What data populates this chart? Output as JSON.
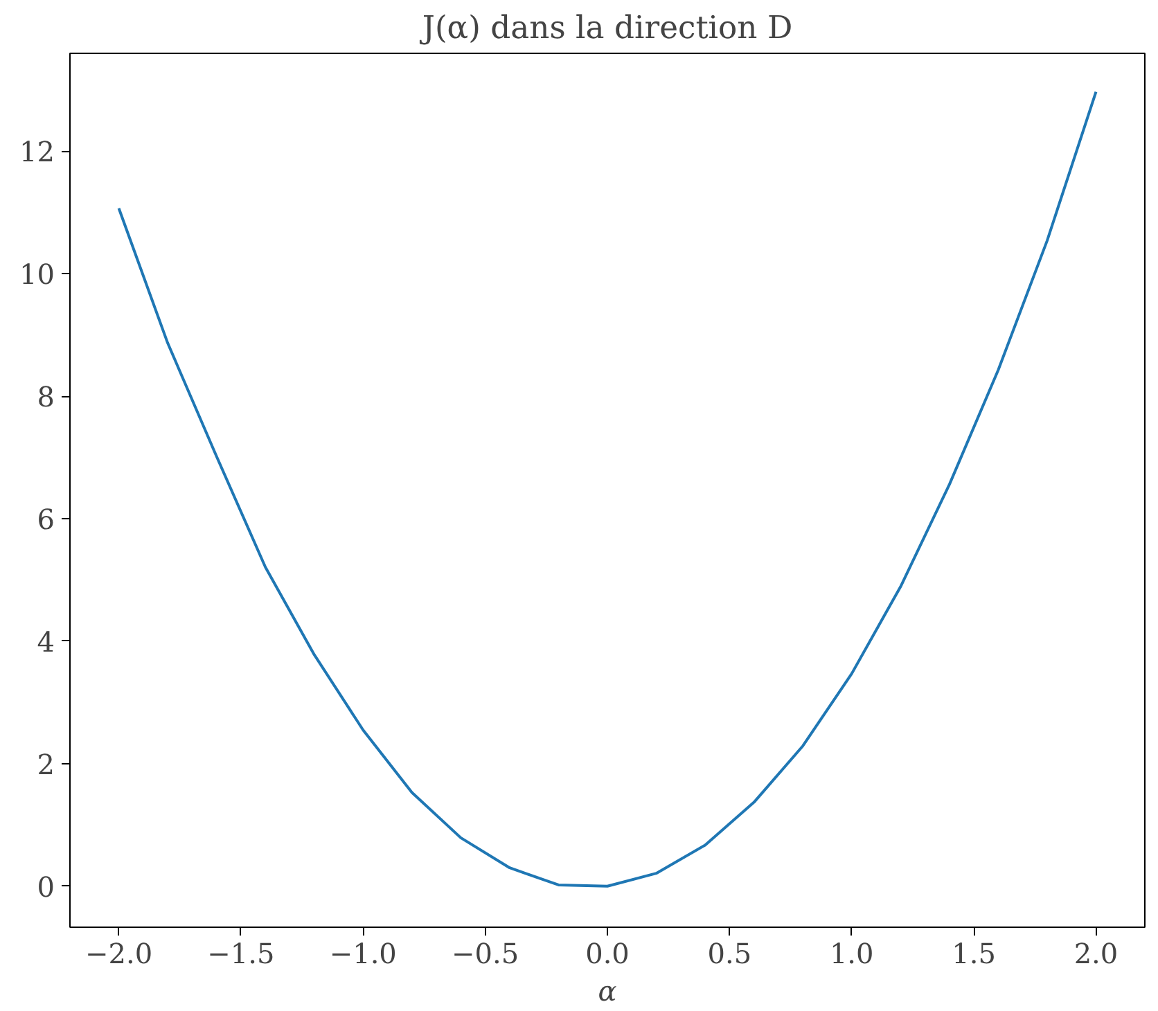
{
  "chart_data": {
    "type": "line",
    "title": "J(α) dans la direction D",
    "xlabel": "α",
    "x": [
      -2.0,
      -1.8,
      -1.6,
      -1.4,
      -1.2,
      -1.0,
      -0.8,
      -0.6,
      -0.4,
      -0.2,
      0.0,
      0.2,
      0.4,
      0.6,
      0.8,
      1.0,
      1.2,
      1.4,
      1.6,
      1.8,
      2.0
    ],
    "series": [
      {
        "color": "#1f77b4",
        "values": [
          11.07,
          8.87,
          7.02,
          5.21,
          3.78,
          2.55,
          1.53,
          0.79,
          0.3,
          0.02,
          0.0,
          0.21,
          0.67,
          1.37,
          2.29,
          3.47,
          4.89,
          6.56,
          8.43,
          10.54,
          12.97
        ]
      }
    ],
    "xlim": [
      -2.2,
      2.2
    ],
    "ylim": [
      -0.67,
      13.6
    ],
    "xticks": [
      {
        "value": -2.0,
        "label": "−2.0"
      },
      {
        "value": -1.5,
        "label": "−1.5"
      },
      {
        "value": -1.0,
        "label": "−1.0"
      },
      {
        "value": -0.5,
        "label": "−0.5"
      },
      {
        "value": 0.0,
        "label": "0.0"
      },
      {
        "value": 0.5,
        "label": "0.5"
      },
      {
        "value": 1.0,
        "label": "1.0"
      },
      {
        "value": 1.5,
        "label": "1.5"
      },
      {
        "value": 2.0,
        "label": "2.0"
      }
    ],
    "yticks": [
      0,
      2,
      4,
      6,
      8,
      10,
      12
    ],
    "grid": false
  }
}
